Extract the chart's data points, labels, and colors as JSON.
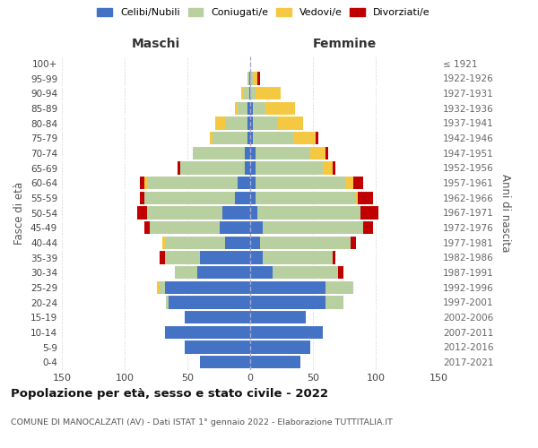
{
  "age_groups": [
    "0-4",
    "5-9",
    "10-14",
    "15-19",
    "20-24",
    "25-29",
    "30-34",
    "35-39",
    "40-44",
    "45-49",
    "50-54",
    "55-59",
    "60-64",
    "65-69",
    "70-74",
    "75-79",
    "80-84",
    "85-89",
    "90-94",
    "95-99",
    "100+"
  ],
  "birth_years": [
    "2017-2021",
    "2012-2016",
    "2007-2011",
    "2002-2006",
    "1997-2001",
    "1992-1996",
    "1987-1991",
    "1982-1986",
    "1977-1981",
    "1972-1976",
    "1967-1971",
    "1962-1966",
    "1957-1961",
    "1952-1956",
    "1947-1951",
    "1942-1946",
    "1937-1941",
    "1932-1936",
    "1927-1931",
    "1922-1926",
    "≤ 1921"
  ],
  "males": {
    "celibi": [
      40,
      52,
      68,
      52,
      65,
      68,
      42,
      40,
      20,
      24,
      22,
      12,
      10,
      4,
      4,
      2,
      2,
      2,
      1,
      1,
      0
    ],
    "coniugati": [
      0,
      0,
      0,
      0,
      2,
      4,
      18,
      28,
      48,
      56,
      60,
      72,
      72,
      52,
      42,
      28,
      18,
      8,
      4,
      1,
      0
    ],
    "vedovi": [
      0,
      0,
      0,
      0,
      0,
      2,
      0,
      0,
      2,
      0,
      0,
      0,
      2,
      0,
      0,
      2,
      8,
      2,
      2,
      0,
      0
    ],
    "divorziati": [
      0,
      0,
      0,
      0,
      0,
      0,
      0,
      4,
      0,
      4,
      8,
      4,
      4,
      2,
      0,
      0,
      0,
      0,
      0,
      0,
      0
    ]
  },
  "females": {
    "nubili": [
      40,
      48,
      58,
      44,
      60,
      60,
      18,
      10,
      8,
      10,
      6,
      4,
      4,
      4,
      4,
      2,
      2,
      2,
      0,
      0,
      0
    ],
    "coniugate": [
      0,
      0,
      0,
      0,
      14,
      22,
      52,
      56,
      72,
      80,
      82,
      80,
      72,
      54,
      44,
      32,
      20,
      10,
      4,
      2,
      0
    ],
    "vedove": [
      0,
      0,
      0,
      0,
      0,
      0,
      0,
      0,
      0,
      0,
      0,
      2,
      6,
      8,
      12,
      18,
      20,
      24,
      20,
      4,
      0
    ],
    "divorziate": [
      0,
      0,
      0,
      0,
      0,
      0,
      4,
      2,
      4,
      8,
      14,
      12,
      8,
      2,
      2,
      2,
      0,
      0,
      0,
      2,
      0
    ]
  },
  "colors": {
    "celibi_nubili": "#4472c4",
    "coniugati_e": "#b8cfa0",
    "vedovi_e": "#f5c842",
    "divorziati_e": "#c00000"
  },
  "xlim": 150,
  "title": "Popolazione per età, sesso e stato civile - 2022",
  "subtitle": "COMUNE DI MANOCALZATI (AV) - Dati ISTAT 1° gennaio 2022 - Elaborazione TUTTITALIA.IT",
  "ylabel_left": "Fasce di età",
  "ylabel_right": "Anni di nascita",
  "xlabel_left": "Maschi",
  "xlabel_right": "Femmine",
  "background_color": "#ffffff",
  "grid_color": "#cccccc"
}
